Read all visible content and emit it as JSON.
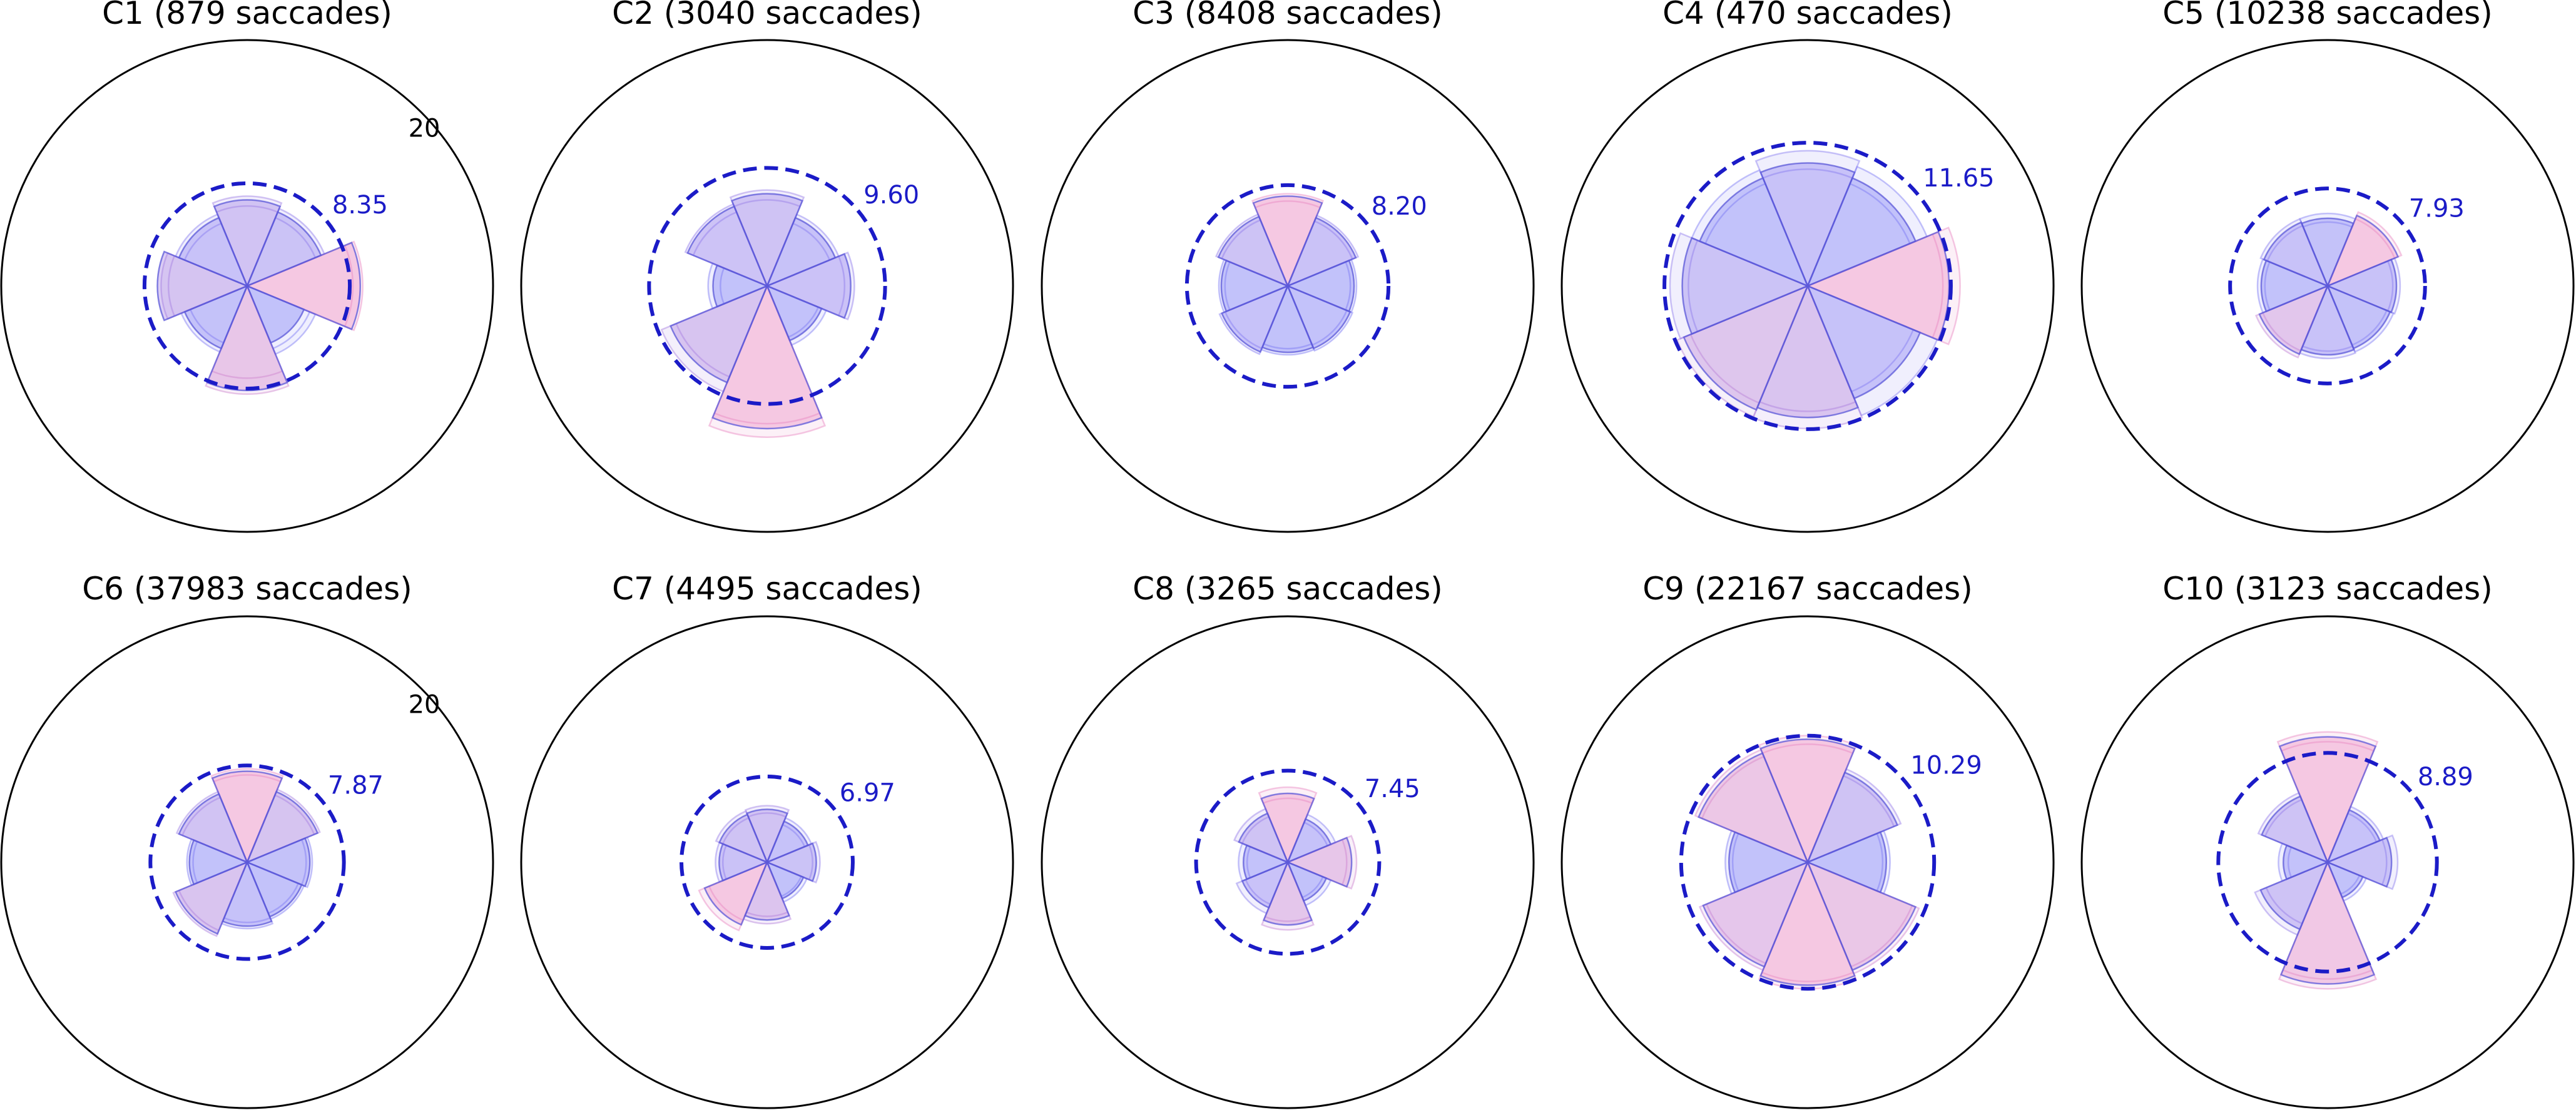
{
  "chart_data": {
    "type": "polar-bar",
    "r_max": 20,
    "r_max_label": "20",
    "sectors": 8,
    "colors": {
      "bar_base": "#7a78f5",
      "bar_hot": "#e986c0",
      "bar_edge": "#5b58d8",
      "mean_circle": "#1b1bc7",
      "outer_circle": "#000000"
    },
    "panels": [
      {
        "title": "C1 (879 saccades)",
        "mean": 8.35,
        "mean_label": "8.35",
        "show_rmax": true,
        "values": [
          7.0,
          6.5,
          9.2,
          5.0,
          8.5,
          5.5,
          7.3,
          6.0
        ],
        "ghost": [
          [
            6.5,
            7.3
          ],
          [
            6.0,
            6.8
          ],
          [
            8.6,
            9.4
          ],
          [
            5.5,
            6.0
          ],
          [
            7.5,
            8.8
          ],
          [
            5.0,
            5.8
          ],
          [
            6.4,
            7.0
          ],
          [
            5.5,
            6.3
          ]
        ]
      },
      {
        "title": "C2 (3040 saccades)",
        "mean": 9.6,
        "mean_label": "9.60",
        "show_rmax": false,
        "values": [
          7.5,
          6.0,
          6.8,
          4.8,
          11.6,
          8.5,
          4.4,
          7.0
        ],
        "ghost": [
          [
            7.0,
            7.8
          ],
          [
            5.5,
            6.3
          ],
          [
            6.3,
            7.1
          ],
          [
            4.5,
            5.2
          ],
          [
            11.2,
            12.3
          ],
          [
            8.0,
            9.3
          ],
          [
            3.8,
            4.8
          ],
          [
            6.5,
            7.2
          ]
        ]
      },
      {
        "title": "C3 (8408 saccades)",
        "mean": 8.2,
        "mean_label": "8.20",
        "show_rmax": false,
        "values": [
          7.3,
          6.0,
          5.4,
          5.5,
          5.4,
          5.8,
          5.4,
          6.1
        ],
        "ghost": [
          [
            6.9,
            7.5
          ],
          [
            5.7,
            6.2
          ],
          [
            5.1,
            5.6
          ],
          [
            5.2,
            5.7
          ],
          [
            5.1,
            5.6
          ],
          [
            5.5,
            6.0
          ],
          [
            5.1,
            5.6
          ],
          [
            5.8,
            6.3
          ]
        ]
      },
      {
        "title": "C4 (470 saccades)",
        "mean": 11.65,
        "mean_label": "11.65",
        "show_rmax": false,
        "values": [
          10.0,
          9.5,
          11.5,
          9.9,
          10.7,
          10.9,
          10.2,
          9.5
        ],
        "ghost": [
          [
            9.5,
            11.0
          ],
          [
            9.0,
            10.5
          ],
          [
            11.0,
            12.4
          ],
          [
            9.3,
            11.4
          ],
          [
            10.2,
            11.6
          ],
          [
            10.3,
            11.5
          ],
          [
            9.7,
            11.2
          ],
          [
            9.0,
            10.2
          ]
        ]
      },
      {
        "title": "C5 (10238 saccades)",
        "mean": 7.93,
        "mean_label": "7.93",
        "show_rmax": false,
        "values": [
          5.5,
          6.2,
          5.6,
          5.5,
          5.6,
          6.0,
          5.4,
          5.6
        ],
        "ghost": [
          [
            5.2,
            5.9
          ],
          [
            5.9,
            6.5
          ],
          [
            5.3,
            5.9
          ],
          [
            5.2,
            5.8
          ],
          [
            5.3,
            5.9
          ],
          [
            5.7,
            6.3
          ],
          [
            5.1,
            5.7
          ],
          [
            5.3,
            5.9
          ]
        ]
      },
      {
        "title": "C6 (37983 saccades)",
        "mean": 7.87,
        "mean_label": "7.87",
        "show_rmax": true,
        "values": [
          7.4,
          6.2,
          5.1,
          4.8,
          5.2,
          6.3,
          4.7,
          6.0
        ],
        "ghost": [
          [
            7.1,
            7.6
          ],
          [
            5.9,
            6.4
          ],
          [
            4.8,
            5.3
          ],
          [
            4.5,
            5.0
          ],
          [
            4.9,
            5.4
          ],
          [
            6.0,
            6.5
          ],
          [
            4.4,
            4.9
          ],
          [
            5.7,
            6.2
          ]
        ]
      },
      {
        "title": "C7 (4495 saccades)",
        "mean": 6.97,
        "mean_label": "6.97",
        "show_rmax": false,
        "values": [
          4.3,
          3.6,
          4.0,
          3.2,
          4.7,
          5.5,
          3.9,
          4.2
        ],
        "ghost": [
          [
            4.0,
            4.6
          ],
          [
            3.3,
            3.9
          ],
          [
            3.7,
            4.3
          ],
          [
            3.0,
            3.5
          ],
          [
            4.4,
            5.0
          ],
          [
            5.1,
            6.0
          ],
          [
            3.6,
            4.2
          ],
          [
            3.9,
            4.5
          ]
        ]
      },
      {
        "title": "C8 (3265 saccades)",
        "mean": 7.45,
        "mean_label": "7.45",
        "show_rmax": false,
        "values": [
          5.6,
          3.8,
          5.2,
          3.4,
          5.1,
          4.0,
          3.6,
          4.3
        ],
        "ghost": [
          [
            5.2,
            6.1
          ],
          [
            3.5,
            4.2
          ],
          [
            4.8,
            5.6
          ],
          [
            3.1,
            3.8
          ],
          [
            4.8,
            5.5
          ],
          [
            3.7,
            4.5
          ],
          [
            3.3,
            4.0
          ],
          [
            4.0,
            4.7
          ]
        ]
      },
      {
        "title": "C9 (22167 saccades)",
        "mean": 10.29,
        "mean_label": "10.29",
        "show_rmax": false,
        "values": [
          10.0,
          7.9,
          6.4,
          9.5,
          10.0,
          9.2,
          6.4,
          9.6
        ],
        "ghost": [
          [
            9.6,
            10.3
          ],
          [
            7.6,
            8.2
          ],
          [
            6.1,
            6.7
          ],
          [
            9.2,
            9.8
          ],
          [
            9.7,
            10.3
          ],
          [
            8.9,
            9.5
          ],
          [
            6.1,
            6.7
          ],
          [
            9.3,
            9.9
          ]
        ]
      },
      {
        "title": "C10 (3123 saccades)",
        "mean": 8.89,
        "mean_label": "8.89",
        "show_rmax": false,
        "values": [
          10.2,
          4.6,
          5.2,
          3.1,
          9.9,
          5.9,
          3.6,
          5.8
        ],
        "ghost": [
          [
            9.8,
            10.6
          ],
          [
            4.3,
            4.9
          ],
          [
            4.8,
            5.7
          ],
          [
            2.8,
            3.4
          ],
          [
            9.5,
            10.3
          ],
          [
            5.4,
            6.4
          ],
          [
            3.2,
            4.0
          ],
          [
            5.5,
            6.1
          ]
        ]
      }
    ]
  }
}
